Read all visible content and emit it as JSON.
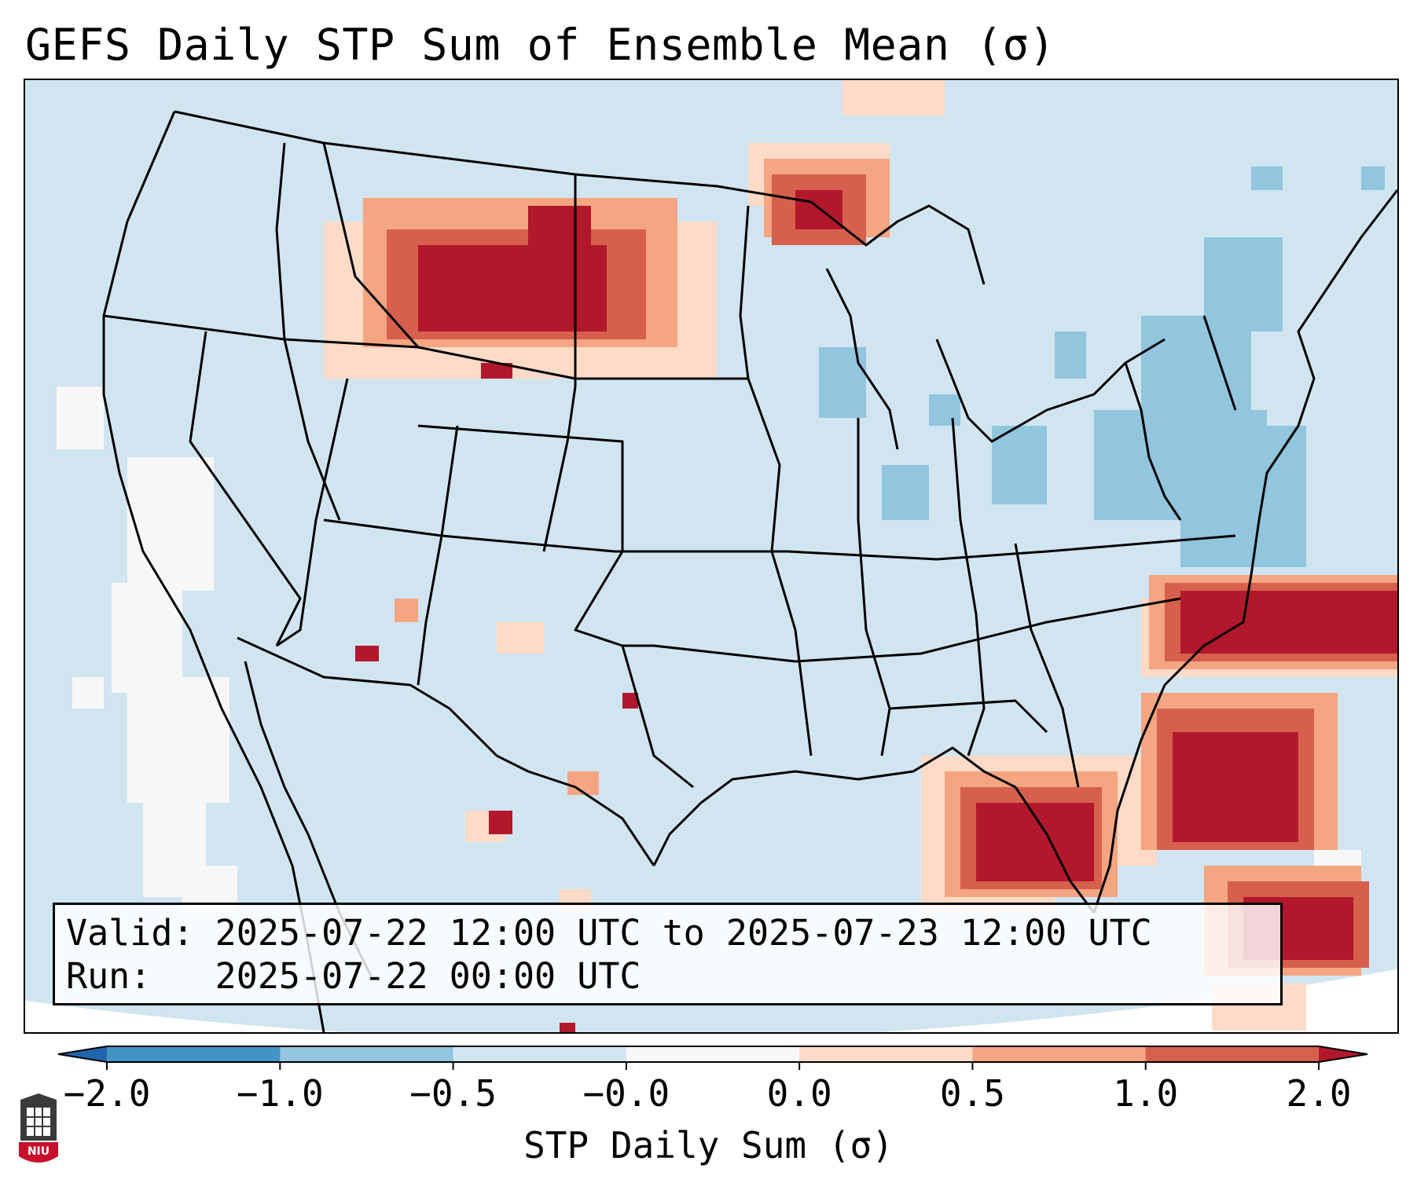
{
  "title": "GEFS Daily STP Sum of Ensemble Mean (σ)",
  "info": {
    "valid_label": "Valid:",
    "valid_text": "2025-07-22 12:00 UTC to 2025-07-23 12:00 UTC",
    "run_label": "Run:",
    "run_text": "2025-07-22 00:00 UTC"
  },
  "colorbar": {
    "label": "STP Daily Sum (σ)",
    "ticks": [
      "−2.0",
      "−1.0",
      "−0.5",
      "−0.0",
      "0.0",
      "0.5",
      "1.0",
      "2.0"
    ],
    "bin_colors": [
      "#4393c3",
      "#92c5de",
      "#d1e5f0",
      "#f7f7f7",
      "#fddbc7",
      "#f4a582",
      "#d6604d"
    ],
    "extend_low_color": "#2166ac",
    "extend_high_color": "#b2182b"
  },
  "map": {
    "projection": "Lambert Conformal (CONUS)",
    "background_color": "#d1e5f0",
    "regions": [
      {
        "name": "northern-plains-positive",
        "level": "high"
      },
      {
        "name": "upper-midwest-positive",
        "level": "mid"
      },
      {
        "name": "gulf-coast-florida-positive",
        "level": "high"
      },
      {
        "name": "western-atlantic-positive",
        "level": "high"
      },
      {
        "name": "northeast-negative",
        "level": "low"
      },
      {
        "name": "california-near-zero",
        "level": "zero"
      }
    ]
  },
  "logo": {
    "text": "NIU"
  }
}
